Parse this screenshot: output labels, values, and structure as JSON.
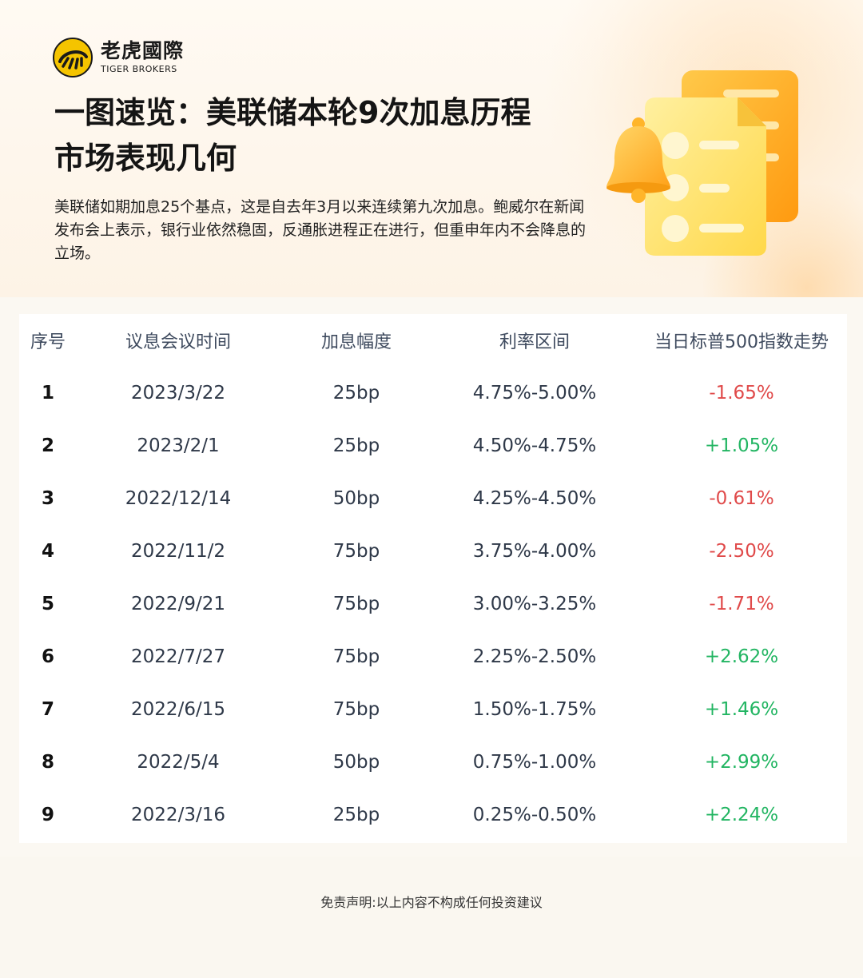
{
  "brand": {
    "name_cn": "老虎國際",
    "name_en": "TIGER BROKERS"
  },
  "title": {
    "line1": "一图速览：美联储本轮9次加息历程",
    "line2": "市场表现几何"
  },
  "subtitle": "美联储如期加息25个基点，这是自去年3月以来连续第九次加息。鲍威尔在新闻发布会上表示，银行业依然稳固，反通胀进程正在进行，但重申年内不会降息的立场。",
  "table": {
    "headers": [
      "序号",
      "议息会议时间",
      "加息幅度",
      "利率区间",
      "当日标普500指数走势"
    ],
    "rows": [
      {
        "seq": "1",
        "date": "2023/3/22",
        "hike": "25bp",
        "range": "4.75%-5.00%",
        "sp500": "-1.65%",
        "trend": "down"
      },
      {
        "seq": "2",
        "date": "2023/2/1",
        "hike": "25bp",
        "range": "4.50%-4.75%",
        "sp500": "+1.05%",
        "trend": "up"
      },
      {
        "seq": "3",
        "date": "2022/12/14",
        "hike": "50bp",
        "range": "4.25%-4.50%",
        "sp500": "-0.61%",
        "trend": "down"
      },
      {
        "seq": "4",
        "date": "2022/11/2",
        "hike": "75bp",
        "range": "3.75%-4.00%",
        "sp500": "-2.50%",
        "trend": "down"
      },
      {
        "seq": "5",
        "date": "2022/9/21",
        "hike": "75bp",
        "range": "3.00%-3.25%",
        "sp500": "-1.71%",
        "trend": "down"
      },
      {
        "seq": "6",
        "date": "2022/7/27",
        "hike": "75bp",
        "range": "2.25%-2.50%",
        "sp500": "+2.62%",
        "trend": "up"
      },
      {
        "seq": "7",
        "date": "2022/6/15",
        "hike": "75bp",
        "range": "1.50%-1.75%",
        "sp500": "+1.46%",
        "trend": "up"
      },
      {
        "seq": "8",
        "date": "2022/5/4",
        "hike": "50bp",
        "range": "0.75%-1.00%",
        "sp500": "+2.99%",
        "trend": "up"
      },
      {
        "seq": "9",
        "date": "2022/3/16",
        "hike": "25bp",
        "range": "0.25%-0.50%",
        "sp500": "+2.24%",
        "trend": "up"
      }
    ]
  },
  "colors": {
    "negative": "#e04a4a",
    "positive": "#22b562",
    "brand_yellow": "#f5c400"
  },
  "icons": [
    "tiger-logo-icon",
    "bell-icon",
    "document-list-icon"
  ],
  "disclaimer": "免责声明:以上内容不构成任何投资建议"
}
